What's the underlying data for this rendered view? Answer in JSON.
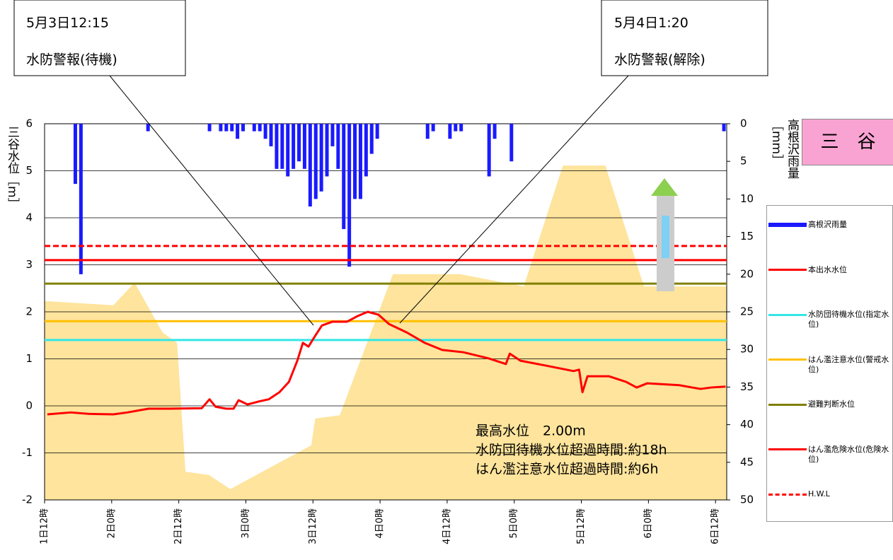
{
  "chart_data": {
    "type": "line",
    "station": "三　谷",
    "annotations": [
      {
        "date": "5月3日12:15",
        "label": "水防警報(待機)"
      },
      {
        "date": "5月4日1:20",
        "label": "水防警報(解除)"
      }
    ],
    "stats": [
      "最高水位　2.00m",
      "水防団待機水位超過時間:約18h",
      "はん濫注意水位超過時間:約6h"
    ],
    "y_label": "三谷水位［m］",
    "y2_label": "高根沢雨量［mm］",
    "xlim": [
      0,
      122
    ],
    "xticks": [
      {
        "value": 0,
        "label": "1日12時"
      },
      {
        "value": 12,
        "label": "2日0時"
      },
      {
        "value": 24,
        "label": "2日12時"
      },
      {
        "value": 36,
        "label": "3日0時"
      },
      {
        "value": 48,
        "label": "3日12時"
      },
      {
        "value": 60,
        "label": "4日0時"
      },
      {
        "value": 72,
        "label": "4日12時"
      },
      {
        "value": 84,
        "label": "5日0時"
      },
      {
        "value": 96,
        "label": "5日12時"
      },
      {
        "value": 108,
        "label": "6日0時"
      },
      {
        "value": 120,
        "label": "6日12時"
      }
    ],
    "ylim": [
      -2,
      6
    ],
    "yticks": [
      -2,
      -1,
      0,
      1,
      2,
      3,
      4,
      5,
      6
    ],
    "y2lim": [
      50,
      0
    ],
    "y2ticks": [
      0,
      5,
      10,
      15,
      20,
      25,
      30,
      35,
      40,
      45,
      50
    ],
    "grid": true,
    "series": [
      {
        "name": "高根沢雨量",
        "kind": "bar",
        "axis": "y2",
        "color": "#1a1aff",
        "x": [
          5.5,
          6.5,
          18.5,
          29.5,
          31.5,
          32.5,
          33.5,
          34.5,
          35.5,
          37.5,
          38.5,
          39.5,
          40.5,
          41.5,
          42.5,
          43.5,
          44.5,
          45.5,
          46.5,
          47.5,
          48.5,
          49.5,
          50.5,
          51.5,
          52.5,
          53.5,
          54.5,
          55.5,
          56.5,
          57.5,
          58.5,
          59.5,
          68.5,
          69.5,
          72.5,
          73.5,
          74.5,
          79.5,
          80.5,
          83.5,
          121.5
        ],
        "values": [
          8,
          20,
          1,
          1,
          1,
          1,
          1,
          2,
          1,
          1,
          1,
          2,
          3,
          6,
          6,
          7,
          6,
          5,
          6,
          11,
          10,
          9,
          7,
          3,
          6,
          14,
          19,
          10,
          10,
          7,
          4,
          2,
          2,
          1,
          2,
          1,
          1,
          7,
          2,
          5,
          1
        ]
      },
      {
        "name": "本出水水位",
        "kind": "line",
        "color": "#ff0000",
        "x": [
          0.5,
          4.7,
          7.8,
          12.3,
          14.8,
          18.6,
          22.4,
          28.1,
          29.5,
          30.6,
          32.5,
          33.8,
          34.7,
          36.3,
          38.2,
          40.1,
          42,
          43.7,
          45.2,
          46.2,
          47.2,
          48.4,
          49.6,
          51.5,
          54.1,
          56,
          57.8,
          59.7,
          61.6,
          64.8,
          68,
          71.1,
          74.9,
          79.4,
          82.5,
          83.2,
          85.1,
          89.5,
          94.6,
          95.6,
          96.2,
          97.1,
          100.9,
          104,
          105.9,
          107.8,
          113.5,
          117.3,
          119.2,
          121.8
        ],
        "values": [
          -0.18,
          -0.14,
          -0.17,
          -0.18,
          -0.14,
          -0.06,
          -0.06,
          -0.05,
          0.14,
          -0.02,
          -0.06,
          -0.06,
          0.12,
          0.03,
          0.09,
          0.14,
          0.29,
          0.51,
          0.96,
          1.34,
          1.26,
          1.49,
          1.71,
          1.79,
          1.79,
          1.91,
          2.0,
          1.94,
          1.74,
          1.56,
          1.34,
          1.19,
          1.14,
          1.01,
          0.89,
          1.11,
          0.96,
          0.86,
          0.74,
          0.77,
          0.29,
          0.63,
          0.63,
          0.51,
          0.39,
          0.48,
          0.44,
          0.36,
          0.39,
          0.41
        ]
      },
      {
        "name": "水防団待機水位(指定水位)",
        "kind": "hline",
        "color": "#33e6e6",
        "value": 1.4
      },
      {
        "name": "はん濫注意水位(警戒水位)",
        "kind": "hline",
        "color": "#ffc000",
        "value": 1.8
      },
      {
        "name": "避難判断水位",
        "kind": "hline",
        "color": "#808000",
        "value": 2.6
      },
      {
        "name": "はん濫危険水位(危険水位)",
        "kind": "hline",
        "color": "#ff0000",
        "value": 3.1
      },
      {
        "name": "H.W.L",
        "kind": "hline",
        "color": "#ff0000",
        "value": 3.4,
        "dashed": true
      },
      {
        "kind": "area",
        "color": "#fedf8b",
        "x": [
          0,
          12.3,
          16.1,
          21.1,
          23.7,
          25.2,
          29.4,
          33.2,
          47.7,
          48.4,
          52.8,
          62.3,
          74.3,
          85.7,
          92.7,
          100.3,
          107.2,
          122
        ],
        "values": [
          2.23,
          2.14,
          2.62,
          1.56,
          1.34,
          -1.4,
          -1.47,
          -1.77,
          -0.84,
          -0.27,
          -0.2,
          2.8,
          2.8,
          2.54,
          5.11,
          5.11,
          2.54,
          2.54
        ]
      }
    ]
  }
}
